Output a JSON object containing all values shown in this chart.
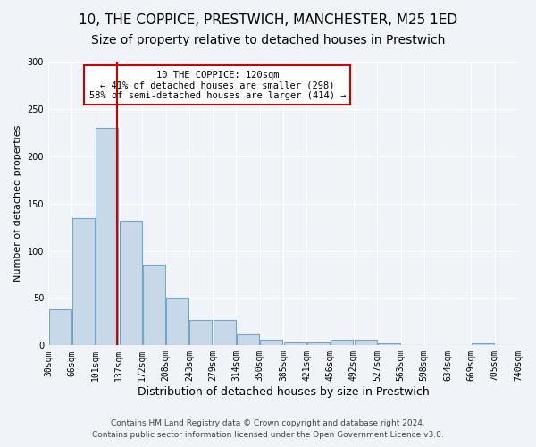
{
  "title1": "10, THE COPPICE, PRESTWICH, MANCHESTER, M25 1ED",
  "title2": "Size of property relative to detached houses in Prestwich",
  "xlabel": "Distribution of detached houses by size in Prestwich",
  "ylabel": "Number of detached properties",
  "bin_labels": [
    "30sqm",
    "66sqm",
    "101sqm",
    "137sqm",
    "172sqm",
    "208sqm",
    "243sqm",
    "279sqm",
    "314sqm",
    "350sqm",
    "385sqm",
    "421sqm",
    "456sqm",
    "492sqm",
    "527sqm",
    "563sqm",
    "598sqm",
    "634sqm",
    "669sqm",
    "705sqm",
    "740sqm"
  ],
  "bar_values": [
    38,
    135,
    230,
    132,
    85,
    50,
    27,
    27,
    12,
    6,
    3,
    3,
    6,
    6,
    2,
    0,
    0,
    0,
    2,
    0
  ],
  "bar_color": "#c7d9e8",
  "bar_edge_color": "#6fa8c8",
  "property_size": 120,
  "property_bin_index": 2,
  "red_line_color": "#cc0000",
  "annotation_text": "10 THE COPPICE: 120sqm\n← 41% of detached houses are smaller (298)\n58% of semi-detached houses are larger (414) →",
  "annotation_box_color": "#ffffff",
  "annotation_box_edge": "#cc0000",
  "footnote1": "Contains HM Land Registry data © Crown copyright and database right 2024.",
  "footnote2": "Contains public sector information licensed under the Open Government Licence v3.0.",
  "ylim": [
    0,
    300
  ],
  "yticks": [
    0,
    50,
    100,
    150,
    200,
    250,
    300
  ],
  "background_color": "#f0f4f8",
  "grid_color": "#ffffff",
  "title1_fontsize": 11,
  "title2_fontsize": 10,
  "xlabel_fontsize": 9,
  "ylabel_fontsize": 8,
  "tick_fontsize": 7,
  "annot_fontsize": 7.5,
  "footnote_fontsize": 6.5
}
